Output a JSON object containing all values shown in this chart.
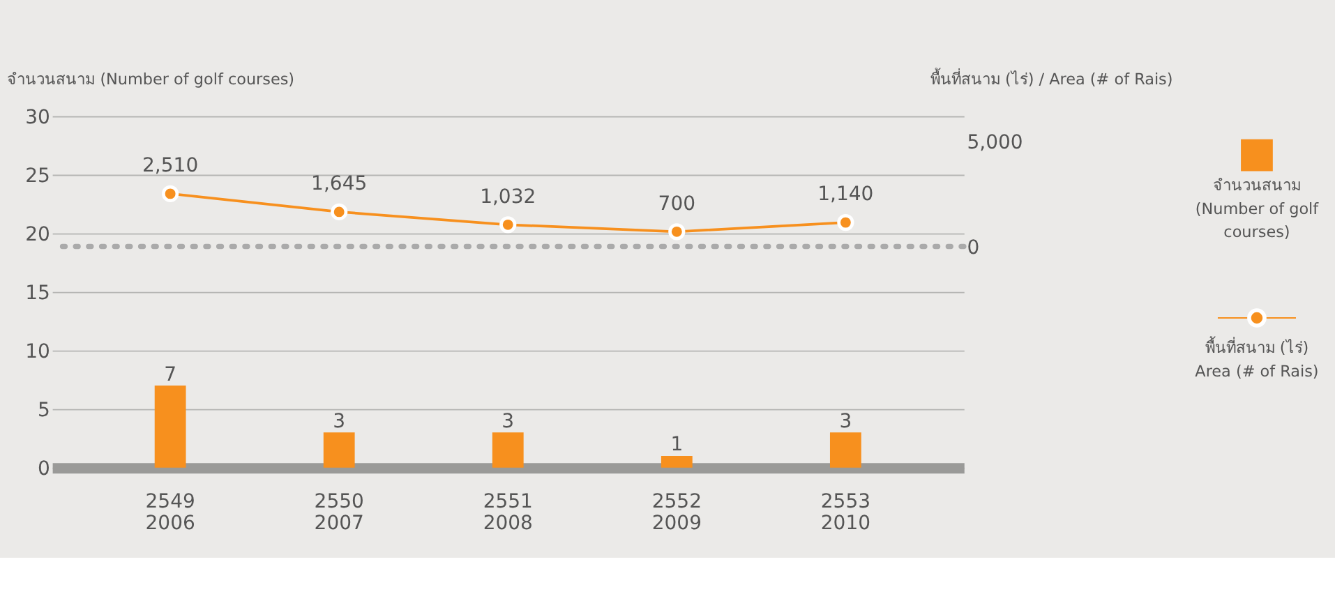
{
  "chart_data": {
    "type": "bar",
    "ylabel": "จำนวนสนาม (Number of golf courses)",
    "y2label": "พื้นที่สนาม (ไร่) / Area (# of Rais)",
    "categories": [
      "2549\n2006",
      "2550\n2007",
      "2551\n2008",
      "2552\n2009",
      "2553\n2010"
    ],
    "series": [
      {
        "name": "จำนวนสนาม\n(Number of golf\ncourses)",
        "color": "#f7901e",
        "values": [
          7,
          3,
          3,
          1,
          3
        ]
      },
      {
        "name": "พื้นที่สนาม (ไร่)\nArea (# of Rais)",
        "type": "line",
        "axis": "y2",
        "color": "#f7901e",
        "values": [
          2510,
          1645,
          1032,
          700,
          1140
        ],
        "value_labels": [
          "2,510",
          "1,645",
          "1,032",
          "700",
          "1,140"
        ]
      }
    ],
    "ylim": [
      0,
      30
    ],
    "yticks": [
      0,
      5,
      10,
      15,
      20,
      25,
      30
    ],
    "y2lim": [
      -10550,
      6210
    ],
    "y2ticks": [
      0,
      {
        "value": 5000,
        "label": "5,000"
      }
    ],
    "ref_lines": [
      {
        "axis": "y2",
        "value": 0,
        "color": "#aaaaaa",
        "line_style": "dotted"
      }
    ],
    "data_labels": true,
    "grid": "y",
    "legend": "right",
    "marker": "circle",
    "line_style": "solid"
  }
}
